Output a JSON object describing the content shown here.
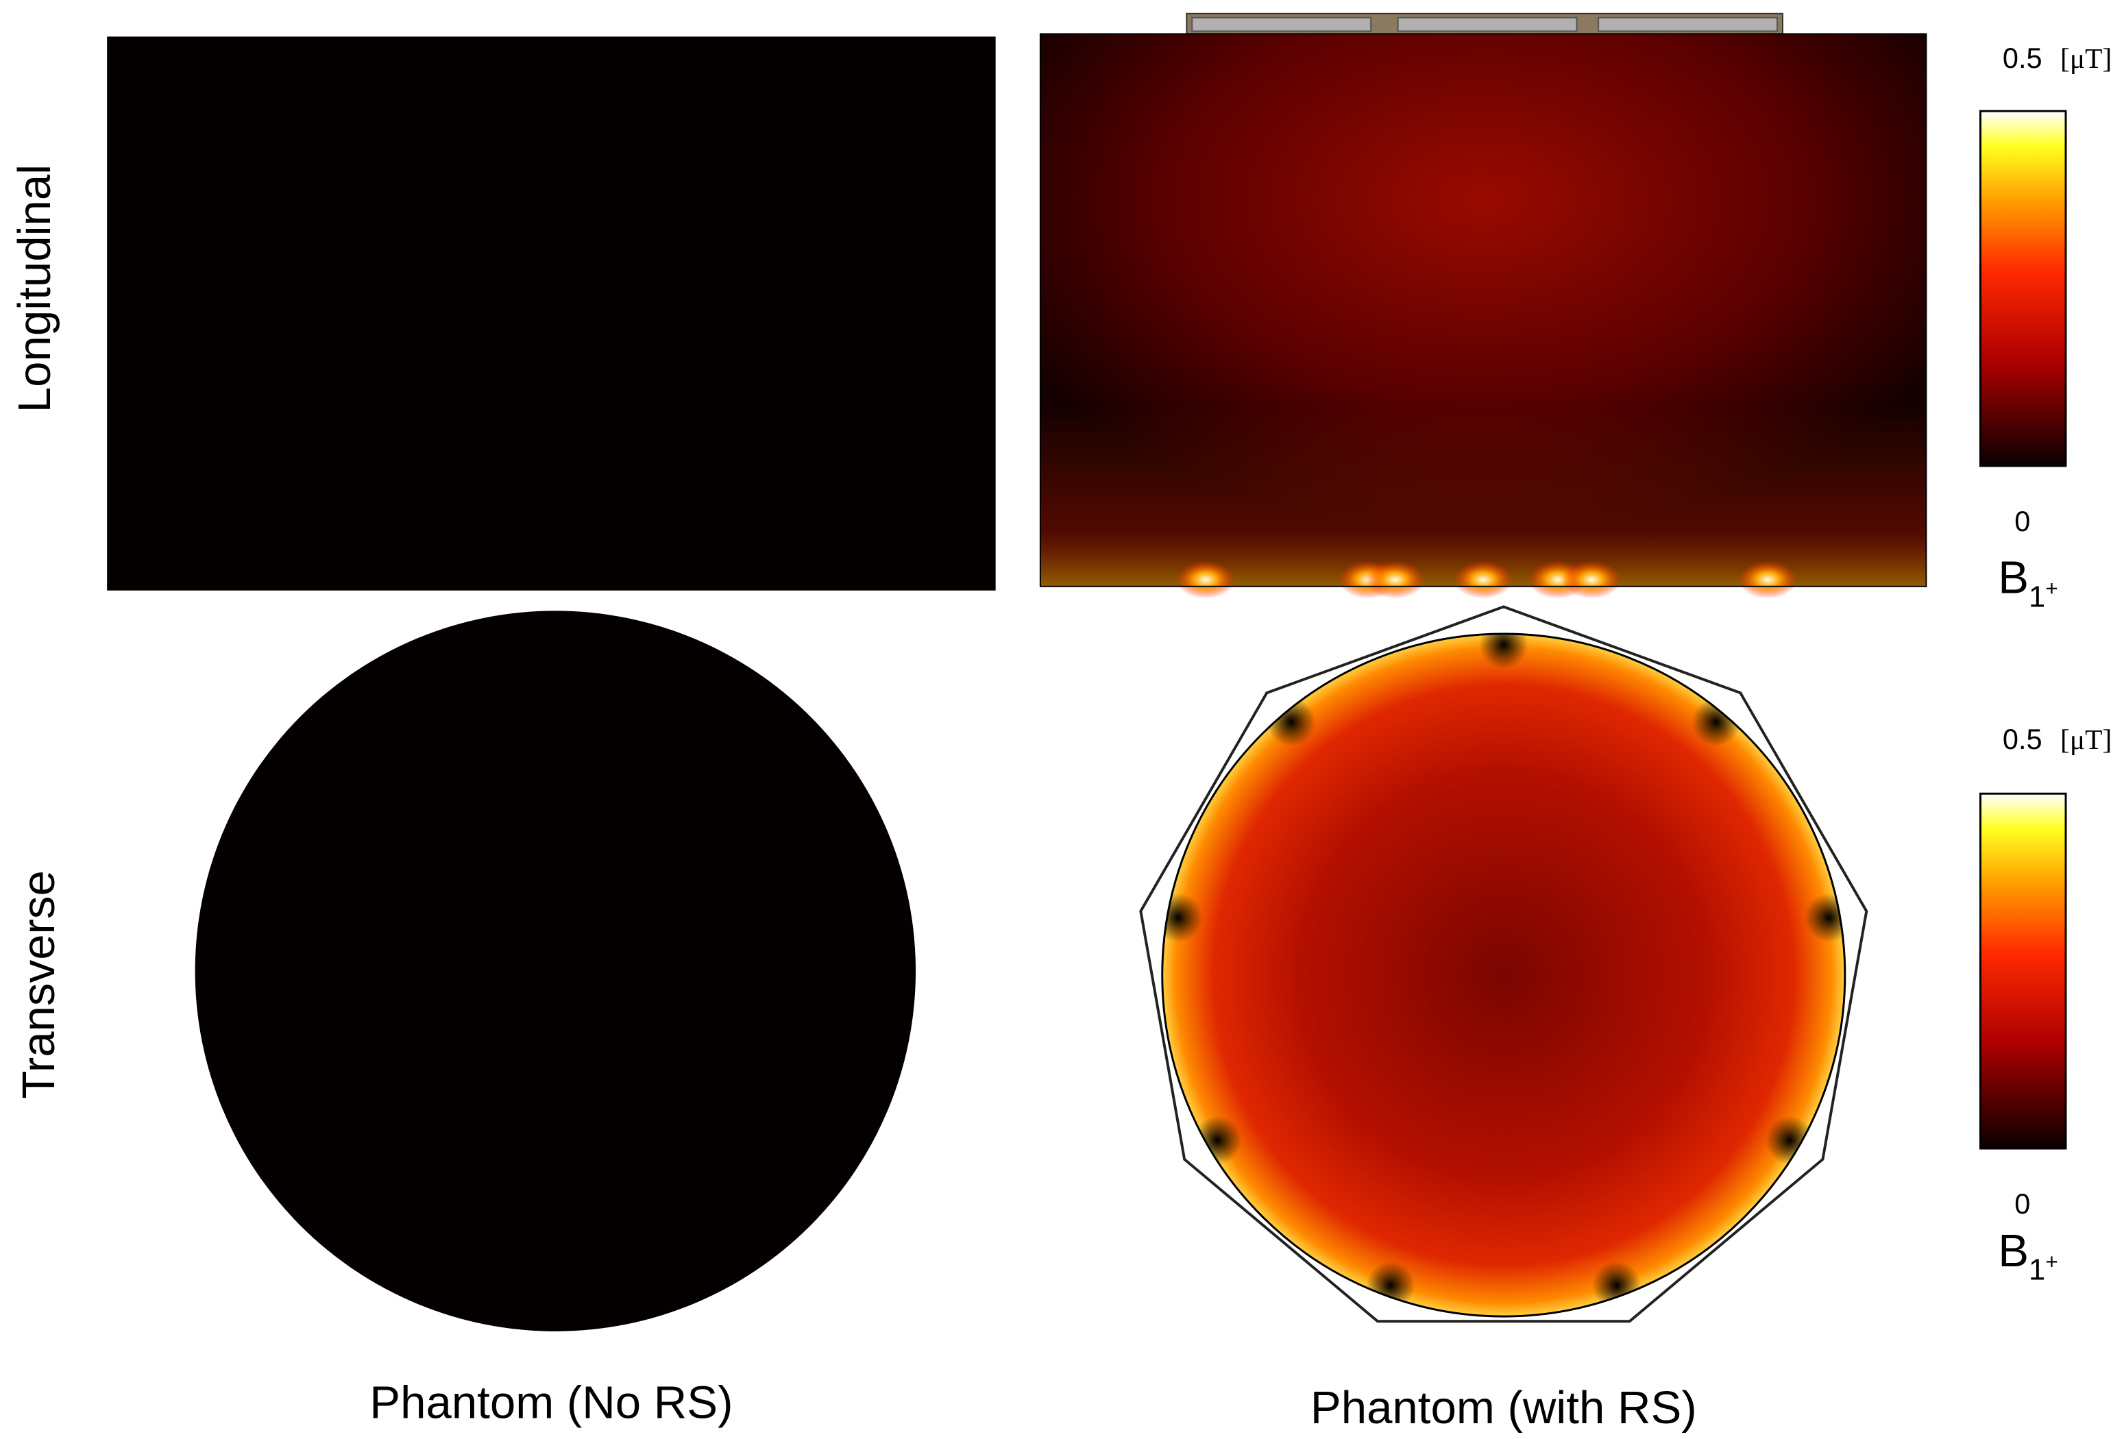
{
  "row_labels": [
    "Longitudinal",
    "Transverse"
  ],
  "column_labels": [
    "Phantom (No RS)",
    "Phantom (with RS)"
  ],
  "colorbars": [
    {
      "max": 0.5,
      "unit": "[μT]",
      "min": 0,
      "label": {
        "symbol": "B",
        "subscript": "1",
        "superscript": "+"
      }
    },
    {
      "max": 0.5,
      "unit": "[μT]",
      "min": 0,
      "label": {
        "symbol": "B",
        "subscript": "1",
        "superscript": "+"
      }
    }
  ]
}
